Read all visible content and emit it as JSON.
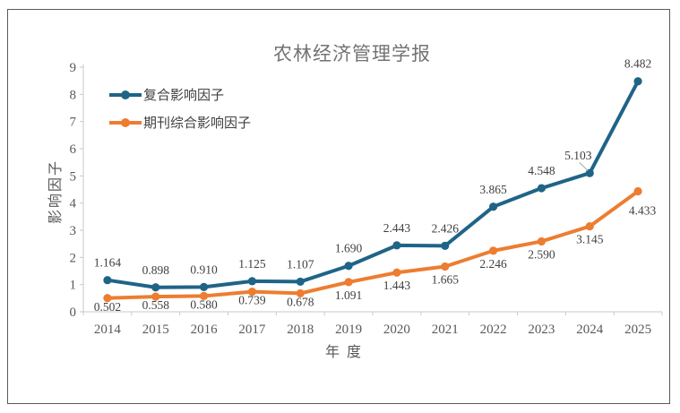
{
  "chart_data": {
    "type": "line",
    "title": "农林经济管理学报",
    "xlabel": "年 度",
    "ylabel": "影响因子",
    "categories": [
      "2014",
      "2015",
      "2016",
      "2017",
      "2018",
      "2019",
      "2020",
      "2021",
      "2022",
      "2023",
      "2024",
      "2025"
    ],
    "ylim": [
      0,
      9
    ],
    "ytick_interval": 1,
    "grid": false,
    "legend_position": "upper-left-inside",
    "series": [
      {
        "name": "复合影响因子",
        "color": "#1F6487",
        "marker": "circle",
        "label_position": "above",
        "values": [
          1.164,
          0.898,
          0.91,
          1.125,
          1.107,
          1.69,
          2.443,
          2.426,
          3.865,
          4.548,
          5.103,
          8.482
        ]
      },
      {
        "name": "期刊综合影响因子",
        "color": "#ED7D31",
        "marker": "circle",
        "label_position": "below",
        "values": [
          0.502,
          0.558,
          0.58,
          0.739,
          0.678,
          1.091,
          1.443,
          1.665,
          2.246,
          2.59,
          3.145,
          4.433
        ]
      }
    ]
  },
  "styles": {
    "background": "#FFFFFF",
    "frame_border": "#595959",
    "title_color": "#737373",
    "axis_line": "#C9C9C9",
    "tick_label": "#595959",
    "data_label": "#3F3F3F",
    "legend_text": "#404040",
    "leader_line": "#A6A6A6"
  }
}
